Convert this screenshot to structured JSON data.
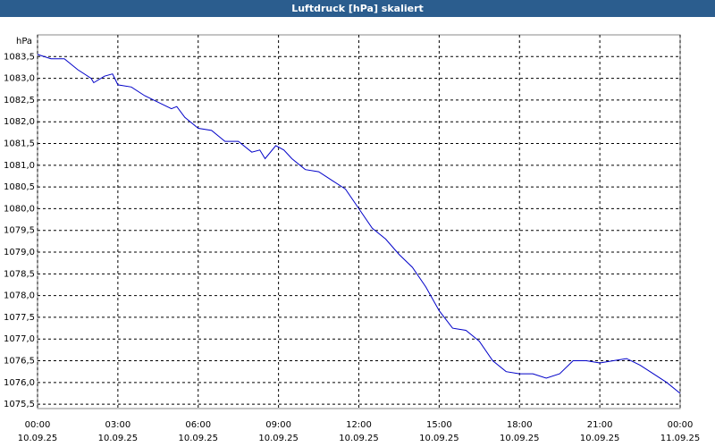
{
  "chart_data": {
    "type": "line",
    "title": "Luftdruck [hPa] skaliert",
    "y_label": "hPa",
    "series": [
      {
        "name": "Luftdruck",
        "color": "#0000c8",
        "x": [
          0,
          0.5,
          1,
          1.5,
          2,
          2.1,
          2.5,
          2.8,
          3,
          3.5,
          4,
          4.5,
          5,
          5.2,
          5.5,
          6,
          6.5,
          7,
          7.5,
          8,
          8.3,
          8.5,
          8.9,
          9.2,
          9.5,
          10,
          10.5,
          11,
          11.5,
          12,
          12.5,
          13,
          13.5,
          14,
          14.5,
          15,
          15.5,
          16,
          16.5,
          17,
          17.5,
          18,
          18.5,
          19,
          19.5,
          20,
          20.5,
          21,
          21.5,
          22,
          22.5,
          23,
          23.5,
          24
        ],
        "values": [
          1083.55,
          1083.45,
          1083.45,
          1083.2,
          1083.0,
          1082.9,
          1083.05,
          1083.1,
          1082.85,
          1082.8,
          1082.6,
          1082.45,
          1082.3,
          1082.35,
          1082.1,
          1081.85,
          1081.8,
          1081.55,
          1081.55,
          1081.3,
          1081.35,
          1081.15,
          1081.45,
          1081.35,
          1081.15,
          1080.9,
          1080.85,
          1080.65,
          1080.45,
          1080.0,
          1079.55,
          1079.3,
          1078.95,
          1078.65,
          1078.2,
          1077.65,
          1077.25,
          1077.2,
          1076.95,
          1076.5,
          1076.25,
          1076.2,
          1076.2,
          1076.1,
          1076.2,
          1076.5,
          1076.5,
          1076.45,
          1076.5,
          1076.55,
          1076.4,
          1076.2,
          1076.0,
          1075.75
        ]
      }
    ],
    "xlim": [
      0,
      24
    ],
    "xticks": [
      {
        "value": 0,
        "label": [
          "00:00",
          "10.09.25"
        ]
      },
      {
        "value": 3,
        "label": [
          "03:00",
          "10.09.25"
        ]
      },
      {
        "value": 6,
        "label": [
          "06:00",
          "10.09.25"
        ]
      },
      {
        "value": 9,
        "label": [
          "09:00",
          "10.09.25"
        ]
      },
      {
        "value": 12,
        "label": [
          "12:00",
          "10.09.25"
        ]
      },
      {
        "value": 15,
        "label": [
          "15:00",
          "10.09.25"
        ]
      },
      {
        "value": 18,
        "label": [
          "18:00",
          "10.09.25"
        ]
      },
      {
        "value": 21,
        "label": [
          "21:00",
          "10.09.25"
        ]
      },
      {
        "value": 24,
        "label": [
          "00:00",
          "11.09.25"
        ]
      }
    ],
    "ylim": [
      1075.4,
      1084.0
    ],
    "yticks": [
      {
        "value": 1075.5,
        "label": "1075,5"
      },
      {
        "value": 1076.0,
        "label": "1076,0"
      },
      {
        "value": 1076.5,
        "label": "1076,5"
      },
      {
        "value": 1077.0,
        "label": "1077,0"
      },
      {
        "value": 1077.5,
        "label": "1077,5"
      },
      {
        "value": 1078.0,
        "label": "1078,0"
      },
      {
        "value": 1078.5,
        "label": "1078,5"
      },
      {
        "value": 1079.0,
        "label": "1079,0"
      },
      {
        "value": 1079.5,
        "label": "1079,5"
      },
      {
        "value": 1080.0,
        "label": "1080,0"
      },
      {
        "value": 1080.5,
        "label": "1080,5"
      },
      {
        "value": 1081.0,
        "label": "1081,0"
      },
      {
        "value": 1081.5,
        "label": "1081,5"
      },
      {
        "value": 1082.0,
        "label": "1082,0"
      },
      {
        "value": 1082.5,
        "label": "1082,5"
      },
      {
        "value": 1083.0,
        "label": "1083,0"
      },
      {
        "value": 1083.5,
        "label": "1083,5"
      }
    ],
    "grid": true
  }
}
